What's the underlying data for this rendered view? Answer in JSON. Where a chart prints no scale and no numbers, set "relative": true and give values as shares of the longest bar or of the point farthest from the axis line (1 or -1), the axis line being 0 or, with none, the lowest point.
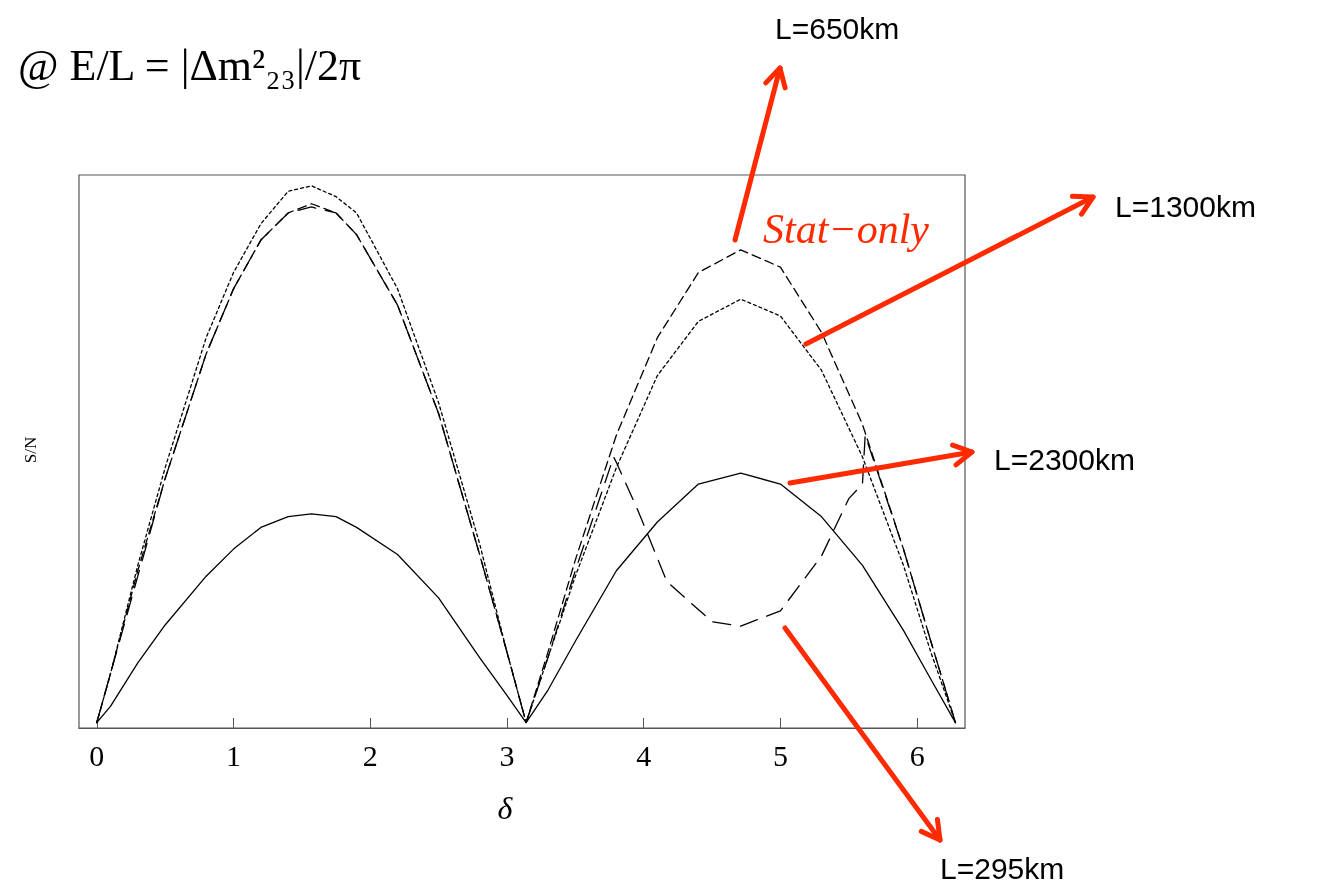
{
  "chart_data": {
    "type": "line",
    "title": "@ E/L = |Δm²₂₃|/2π",
    "xlabel": "δ",
    "ylabel": "S/N",
    "relative": true,
    "marker": "none",
    "xlim": [
      -0.13,
      6.35
    ],
    "xticks": [
      0,
      1,
      2,
      3,
      4,
      5,
      6
    ],
    "annotations": [
      "Stat−only"
    ],
    "x": [
      0,
      0.1,
      0.3,
      0.5,
      0.8,
      1.0,
      1.2,
      1.4,
      1.57,
      1.75,
      1.9,
      2.2,
      2.5,
      2.8,
      3.0,
      3.14,
      3.3,
      3.5,
      3.8,
      4.1,
      4.4,
      4.71,
      5.0,
      5.3,
      5.6,
      5.9,
      6.1,
      6.28
    ],
    "series": [
      {
        "name": "L=650km",
        "color": "#000000",
        "line_style": "dashed",
        "values": [
          0.01,
          0.1,
          0.29,
          0.46,
          0.69,
          0.81,
          0.9,
          0.95,
          0.967,
          0.95,
          0.91,
          0.78,
          0.58,
          0.32,
          0.14,
          0.01,
          0.14,
          0.31,
          0.54,
          0.72,
          0.84,
          0.882,
          0.85,
          0.73,
          0.56,
          0.33,
          0.16,
          0.01
        ]
      },
      {
        "name": "L=1300km",
        "color": "#000000",
        "line_style": "dotted",
        "values": [
          0.01,
          0.1,
          0.3,
          0.48,
          0.72,
          0.84,
          0.93,
          0.99,
          1.0,
          0.98,
          0.95,
          0.81,
          0.6,
          0.34,
          0.14,
          0.01,
          0.13,
          0.28,
          0.48,
          0.65,
          0.75,
          0.791,
          0.76,
          0.66,
          0.5,
          0.3,
          0.14,
          0.01
        ]
      },
      {
        "name": "L=2300km",
        "color": "#000000",
        "line_style": "solid",
        "values": [
          0.01,
          0.04,
          0.12,
          0.19,
          0.28,
          0.33,
          0.37,
          0.39,
          0.395,
          0.39,
          0.37,
          0.32,
          0.24,
          0.13,
          0.06,
          0.01,
          0.07,
          0.16,
          0.29,
          0.38,
          0.45,
          0.47,
          0.45,
          0.39,
          0.3,
          0.18,
          0.09,
          0.01
        ]
      },
      {
        "name": "L=295km",
        "color": "#000000",
        "line_style": "dashed",
        "x": [
          0,
          0.1,
          0.3,
          0.5,
          0.8,
          1.0,
          1.2,
          1.4,
          1.57,
          1.75,
          1.9,
          2.2,
          2.5,
          2.8,
          3.0,
          3.14,
          3.3,
          3.5,
          3.78,
          3.8,
          3.96,
          4.17,
          4.5,
          4.71,
          5.0,
          5.3,
          5.5,
          5.6,
          5.62,
          5.9,
          6.1,
          6.28
        ],
        "values": [
          0.01,
          0.1,
          0.28,
          0.46,
          0.69,
          0.81,
          0.9,
          0.95,
          0.961,
          0.95,
          0.91,
          0.78,
          0.58,
          0.32,
          0.14,
          0.01,
          0.13,
          0.29,
          0.5,
          0.49,
          0.4,
          0.27,
          0.196,
          0.188,
          0.216,
          0.317,
          0.423,
          0.45,
          0.54,
          0.33,
          0.16,
          0.01
        ]
      }
    ]
  }
}
